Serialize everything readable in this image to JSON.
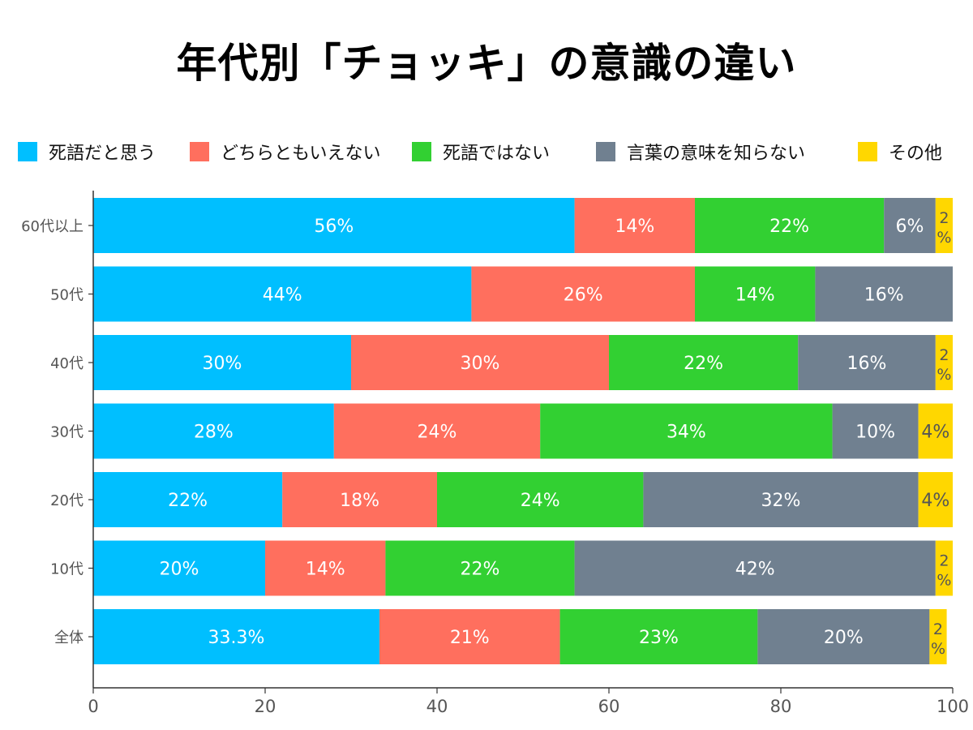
{
  "chart_data": {
    "type": "bar",
    "orientation": "horizontal",
    "stacked": true,
    "title": "年代別「チョッキ」の意識の違い",
    "categories": [
      "60代以上",
      "50代",
      "40代",
      "30代",
      "20代",
      "10代",
      "全体"
    ],
    "series": [
      {
        "name": "死語だと思う",
        "color": "#00BFFF",
        "values": [
          56,
          44,
          30,
          28,
          22,
          20,
          33.3
        ],
        "labels": [
          "56%",
          "44%",
          "30%",
          "28%",
          "22%",
          "20%",
          "33.3%"
        ]
      },
      {
        "name": "どちらともいえない",
        "color": "#FF6F5E",
        "values": [
          14,
          26,
          30,
          24,
          18,
          14,
          21
        ],
        "labels": [
          "14%",
          "26%",
          "30%",
          "24%",
          "18%",
          "14%",
          "21%"
        ]
      },
      {
        "name": "死語ではない",
        "color": "#32D032",
        "values": [
          22,
          14,
          22,
          34,
          24,
          22,
          23
        ],
        "labels": [
          "22%",
          "14%",
          "22%",
          "34%",
          "24%",
          "22%",
          "23%"
        ]
      },
      {
        "name": "言葉の意味を知らない",
        "color": "#708090",
        "values": [
          6,
          16,
          16,
          10,
          32,
          42,
          20
        ],
        "labels": [
          "6%",
          "16%",
          "16%",
          "10%",
          "32%",
          "42%",
          "20%"
        ]
      },
      {
        "name": "その他",
        "color": "#FFD700",
        "values": [
          2,
          0,
          2,
          4,
          4,
          2,
          2
        ],
        "labels": [
          "2%",
          "",
          "2%",
          "4%",
          "4%",
          "2%",
          "2%"
        ]
      }
    ],
    "xlim": [
      0,
      100
    ],
    "xticks": [
      "0",
      "20",
      "40",
      "60",
      "80",
      "100"
    ],
    "xlabel": "",
    "ylabel": "",
    "grid": false,
    "legend_position": "top"
  }
}
